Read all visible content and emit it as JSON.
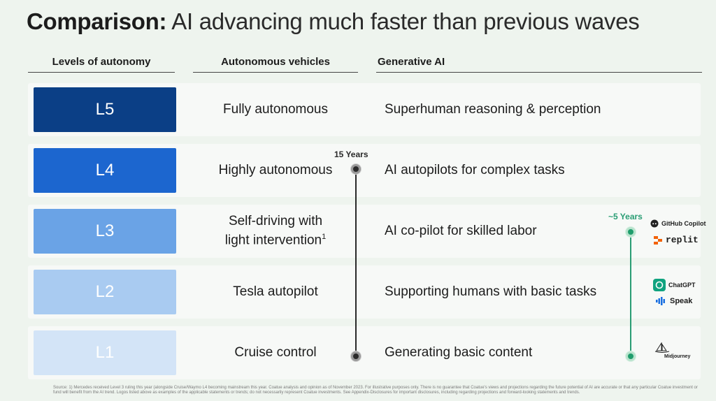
{
  "title": {
    "bold": "Comparison:",
    "rest": "AI advancing much faster than previous waves"
  },
  "headers": {
    "levels": "Levels of autonomy",
    "av": "Autonomous vehicles",
    "gai": "Generative AI"
  },
  "rows": [
    {
      "level": "L5",
      "av": "Fully autonomous",
      "av_sup": "",
      "gai": "Superhuman reasoning & perception",
      "color": "#0b3f86",
      "text_color": "#ffffff"
    },
    {
      "level": "L4",
      "av": "Highly autonomous",
      "av_sup": "",
      "gai": "AI autopilots for complex tasks",
      "color": "#1c66cf",
      "text_color": "#ffffff"
    },
    {
      "level": "L3",
      "av": "Self-driving with light intervention",
      "av_sup": "1",
      "gai": "AI co-pilot for skilled labor",
      "color": "#6aa3e6",
      "text_color": "#ffffff"
    },
    {
      "level": "L2",
      "av": "Tesla autopilot",
      "av_sup": "",
      "gai": "Supporting humans with basic tasks",
      "color": "#a9cbf1",
      "text_color": "#ffffff"
    },
    {
      "level": "L1",
      "av": "Cruise control",
      "av_sup": "",
      "gai": "Generating basic content",
      "color": "#d3e4f7",
      "text_color": "#ffffff"
    }
  ],
  "timelines": {
    "av": {
      "label": "15 Years",
      "color": "#2a2a2a"
    },
    "gai": {
      "label": "~5 Years",
      "color": "#2a9d74"
    }
  },
  "logos": {
    "github": "GitHub Copilot",
    "replit": "replit",
    "chatgpt": "ChatGPT",
    "speak": "Speak",
    "midjourney": "Midjourney"
  },
  "footnote": "Source: 1) Mercedes received Level 3 ruling this year (alongside Cruise/Waymo L4 becoming mainstream this year. Coatue analysis and opinion as of November 2023. For illustrative purposes only. There is no guarantee that Coatue's views and projections regarding the future potential of AI are accurate or that any particular Coatue investment or fund will benefit from the AI trend. Logos listed above as examples of the applicable statements or trends; do not necessarily represent Coatue investments. See Appendix-Disclosures for important disclosures, including regarding projections and forward-looking statements and trends."
}
